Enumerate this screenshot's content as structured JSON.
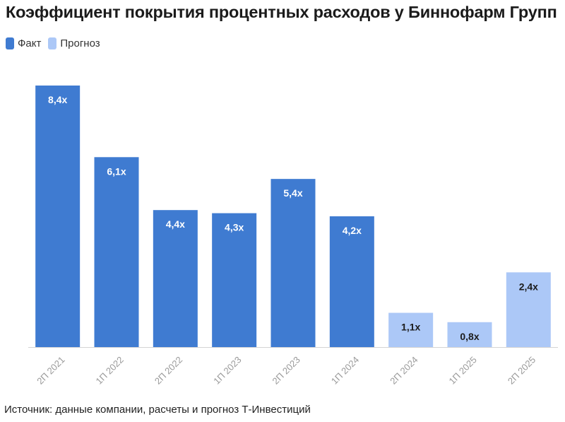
{
  "title": "Коэффициент покрытия процентных расходов у Биннофарм Групп",
  "legend": [
    {
      "label": "Факт",
      "color": "#3f7bd1"
    },
    {
      "label": "Прогноз",
      "color": "#acc8f7"
    }
  ],
  "source": "Источник: данные компании, расчеты и прогноз Т-Инвестиций",
  "chart_data": {
    "type": "bar",
    "categories": [
      "2П 2021",
      "1П 2022",
      "2П 2022",
      "1П 2023",
      "2П 2023",
      "1П 2024",
      "2П 2024",
      "1П 2025",
      "2П 2025"
    ],
    "values": [
      8.4,
      6.1,
      4.4,
      4.3,
      5.4,
      4.2,
      1.1,
      0.8,
      2.4
    ],
    "value_labels": [
      "8,4x",
      "6,1x",
      "4,4x",
      "4,3x",
      "5,4x",
      "4,2x",
      "1,1x",
      "0,8x",
      "2,4x"
    ],
    "series_type": [
      "Факт",
      "Факт",
      "Факт",
      "Факт",
      "Факт",
      "Факт",
      "Прогноз",
      "Прогноз",
      "Прогноз"
    ],
    "ylim": [
      0,
      8.4
    ],
    "grid": false,
    "legend_position": "top-left"
  }
}
